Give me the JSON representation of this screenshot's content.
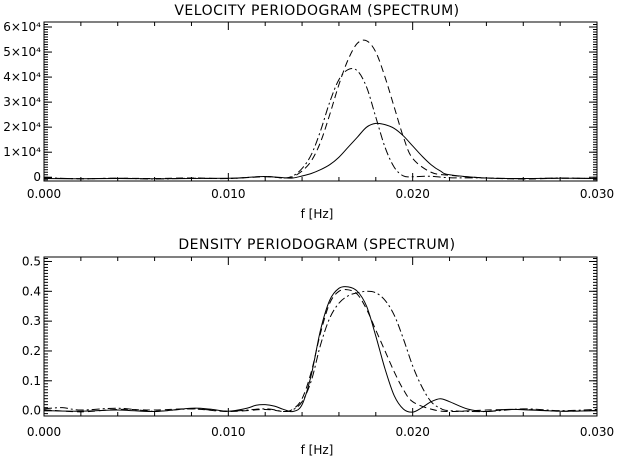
{
  "chart_data": [
    {
      "type": "line",
      "title": "VELOCITY PERIODOGRAM (SPECTRUM)",
      "xlabel": "f [Hz]",
      "ylabel": "",
      "xlim": [
        0.0,
        0.03
      ],
      "ylim": [
        -1500,
        62000
      ],
      "grid": false,
      "x_ticks": [
        {
          "value": 0.0,
          "label": "0.000"
        },
        {
          "value": 0.01,
          "label": "0.010"
        },
        {
          "value": 0.02,
          "label": "0.020"
        },
        {
          "value": 0.03,
          "label": "0.030"
        }
      ],
      "y_ticks": [
        {
          "value": 0,
          "label": "0"
        },
        {
          "value": 10000,
          "label": "1×10⁴"
        },
        {
          "value": 20000,
          "label": "2×10⁴"
        },
        {
          "value": 30000,
          "label": "3×10⁴"
        },
        {
          "value": 40000,
          "label": "4×10⁴"
        },
        {
          "value": 50000,
          "label": "5×10⁴"
        },
        {
          "value": 60000,
          "label": "6×10⁴"
        }
      ],
      "series": [
        {
          "style": "solid",
          "x": [
            0.0,
            0.002,
            0.004,
            0.006,
            0.008,
            0.01,
            0.011,
            0.012,
            0.013,
            0.0135,
            0.014,
            0.0145,
            0.015,
            0.0155,
            0.016,
            0.0165,
            0.017,
            0.0175,
            0.018,
            0.0185,
            0.019,
            0.0195,
            0.02,
            0.0205,
            0.021,
            0.0215,
            0.022,
            0.024,
            0.026,
            0.028,
            0.03
          ],
          "y": [
            -500,
            -600,
            -500,
            -600,
            -500,
            -400,
            -100,
            300,
            -200,
            -300,
            500,
            1500,
            3000,
            5000,
            8000,
            12000,
            16000,
            20000,
            21500,
            21000,
            19500,
            16500,
            12500,
            8500,
            5000,
            2500,
            1000,
            -300,
            -500,
            -400,
            -500
          ]
        },
        {
          "style": "dashed",
          "x": [
            0.0,
            0.002,
            0.004,
            0.006,
            0.008,
            0.01,
            0.012,
            0.013,
            0.0135,
            0.014,
            0.0145,
            0.015,
            0.0155,
            0.016,
            0.0165,
            0.017,
            0.0175,
            0.018,
            0.0185,
            0.019,
            0.0195,
            0.02,
            0.021,
            0.022,
            0.024,
            0.026,
            0.028,
            0.03
          ],
          "y": [
            -300,
            -600,
            -400,
            -500,
            -300,
            -500,
            200,
            -300,
            200,
            2500,
            6500,
            14000,
            25000,
            37000,
            47000,
            53500,
            54500,
            50000,
            40000,
            28000,
            16000,
            7500,
            2000,
            800,
            -300,
            -700,
            -400,
            -500
          ]
        },
        {
          "style": "dash-dot",
          "x": [
            0.0,
            0.002,
            0.004,
            0.006,
            0.008,
            0.01,
            0.012,
            0.013,
            0.0135,
            0.014,
            0.0145,
            0.015,
            0.0155,
            0.016,
            0.0165,
            0.017,
            0.0175,
            0.018,
            0.0185,
            0.019,
            0.0195,
            0.02,
            0.021,
            0.022,
            0.024,
            0.026,
            0.028,
            0.03
          ],
          "y": [
            -200,
            -600,
            -400,
            -700,
            -400,
            -500,
            300,
            -300,
            500,
            3500,
            9000,
            18500,
            30000,
            39000,
            43000,
            42500,
            36000,
            24000,
            12000,
            4000,
            500,
            200,
            400,
            -200,
            -300,
            -600,
            -300,
            -600
          ]
        }
      ]
    },
    {
      "type": "line",
      "title": "DENSITY PERIODOGRAM (SPECTRUM)",
      "xlabel": "f [Hz]",
      "ylabel": "",
      "xlim": [
        0.0,
        0.03
      ],
      "ylim": [
        -0.018,
        0.515
      ],
      "grid": false,
      "x_ticks": [
        {
          "value": 0.0,
          "label": "0.000"
        },
        {
          "value": 0.01,
          "label": "0.010"
        },
        {
          "value": 0.02,
          "label": "0.020"
        },
        {
          "value": 0.03,
          "label": "0.030"
        }
      ],
      "y_ticks": [
        {
          "value": 0.0,
          "label": "0.0"
        },
        {
          "value": 0.1,
          "label": "0.1"
        },
        {
          "value": 0.2,
          "label": "0.2"
        },
        {
          "value": 0.3,
          "label": "0.3"
        },
        {
          "value": 0.4,
          "label": "0.4"
        },
        {
          "value": 0.5,
          "label": "0.5"
        }
      ],
      "series": [
        {
          "style": "solid",
          "x": [
            0.0,
            0.002,
            0.004,
            0.006,
            0.008,
            0.009,
            0.01,
            0.011,
            0.0115,
            0.012,
            0.0125,
            0.013,
            0.0135,
            0.014,
            0.0145,
            0.015,
            0.0155,
            0.016,
            0.0165,
            0.017,
            0.0175,
            0.018,
            0.0185,
            0.019,
            0.0195,
            0.02,
            0.0205,
            0.021,
            0.0215,
            0.022,
            0.023,
            0.024,
            0.025,
            0.026,
            0.028,
            0.03
          ],
          "y": [
            0.0,
            -0.002,
            0.002,
            -0.003,
            0.008,
            0.005,
            -0.002,
            0.008,
            0.018,
            0.02,
            0.015,
            0.004,
            -0.003,
            0.02,
            0.12,
            0.27,
            0.37,
            0.41,
            0.415,
            0.4,
            0.35,
            0.25,
            0.14,
            0.05,
            0.005,
            -0.005,
            0.01,
            0.03,
            0.04,
            0.03,
            0.005,
            -0.003,
            0.004,
            0.003,
            -0.002,
            0.0
          ]
        },
        {
          "style": "dashed",
          "x": [
            0.0,
            0.002,
            0.004,
            0.006,
            0.008,
            0.01,
            0.012,
            0.013,
            0.0135,
            0.014,
            0.0145,
            0.015,
            0.0155,
            0.016,
            0.0165,
            0.017,
            0.0175,
            0.018,
            0.0185,
            0.019,
            0.0195,
            0.02,
            0.021,
            0.022,
            0.024,
            0.026,
            0.028,
            0.03
          ],
          "y": [
            0.003,
            -0.004,
            0.004,
            0.002,
            0.006,
            -0.003,
            0.004,
            -0.003,
            0.005,
            0.04,
            0.13,
            0.26,
            0.36,
            0.4,
            0.405,
            0.39,
            0.34,
            0.27,
            0.2,
            0.13,
            0.07,
            0.03,
            0.005,
            -0.003,
            0.002,
            0.004,
            -0.002,
            0.0
          ]
        },
        {
          "style": "dash-dot",
          "x": [
            0.0,
            0.001,
            0.002,
            0.004,
            0.006,
            0.008,
            0.01,
            0.012,
            0.013,
            0.0135,
            0.014,
            0.0145,
            0.015,
            0.0155,
            0.016,
            0.0165,
            0.017,
            0.0175,
            0.018,
            0.0185,
            0.019,
            0.0195,
            0.02,
            0.0205,
            0.021,
            0.0215,
            0.022,
            0.024,
            0.026,
            0.028,
            0.03
          ],
          "y": [
            0.006,
            0.01,
            0.002,
            0.008,
            -0.002,
            0.006,
            -0.002,
            0.006,
            -0.003,
            0.003,
            0.03,
            0.1,
            0.22,
            0.31,
            0.36,
            0.385,
            0.395,
            0.4,
            0.395,
            0.37,
            0.32,
            0.24,
            0.15,
            0.08,
            0.03,
            0.008,
            0.0,
            -0.003,
            0.006,
            0.0,
            0.004
          ]
        }
      ]
    }
  ]
}
